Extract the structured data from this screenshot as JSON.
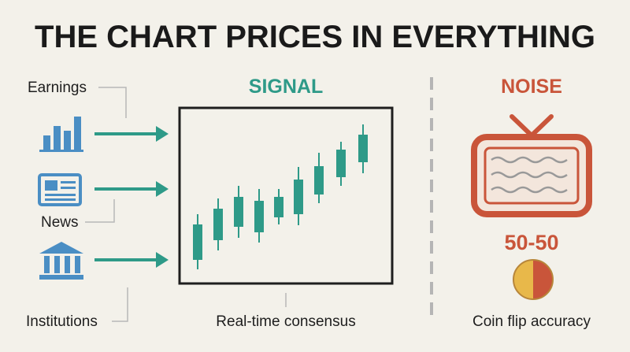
{
  "title": "THE CHART PRICES IN EVERYTHING",
  "inputs": [
    "Earnings",
    "News",
    "Institutions"
  ],
  "signal": {
    "label": "SIGNAL",
    "caption": "Real-time consensus"
  },
  "noise": {
    "label": "NOISE",
    "odds": "50-50",
    "caption": "Coin flip accuracy"
  }
}
